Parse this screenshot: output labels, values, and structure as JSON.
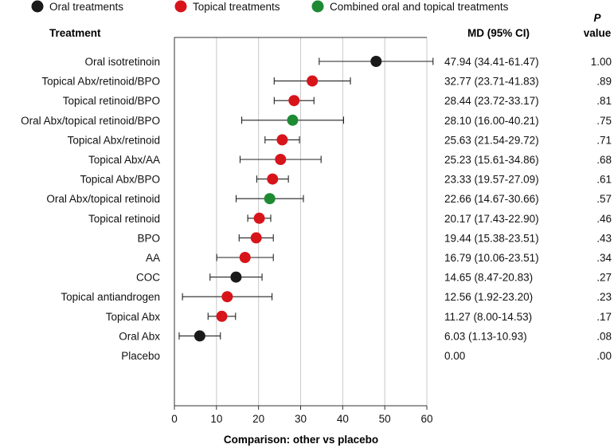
{
  "chart_data": {
    "type": "forest",
    "legend": [
      {
        "label": "Oral treatments",
        "color": "#1a1a1a"
      },
      {
        "label": "Topical treatments",
        "color": "#d7141a"
      },
      {
        "label": "Combined oral and topical treatments",
        "color": "#1e8a33"
      }
    ],
    "headers": {
      "treatment": "Treatment",
      "md": "MD (95% CI)",
      "p_top": "P",
      "p_bottom": "value"
    },
    "xlabel": "Comparison: other vs placebo",
    "xlim": [
      0,
      60
    ],
    "xticks": [
      0,
      10,
      20,
      30,
      40,
      50,
      60
    ],
    "rows": [
      {
        "treatment": "Oral isotretinoin",
        "group": 0,
        "md": 47.94,
        "lo": 34.41,
        "hi": 61.47,
        "md_text": "47.94 (34.41-61.47)",
        "p": "1.00"
      },
      {
        "treatment": "Topical Abx/retinoid/BPO",
        "group": 1,
        "md": 32.77,
        "lo": 23.71,
        "hi": 41.83,
        "md_text": "32.77 (23.71-41.83)",
        "p": ".89"
      },
      {
        "treatment": "Topical retinoid/BPO",
        "group": 1,
        "md": 28.44,
        "lo": 23.72,
        "hi": 33.17,
        "md_text": "28.44 (23.72-33.17)",
        "p": ".81"
      },
      {
        "treatment": "Oral Abx/topical retinoid/BPO",
        "group": 2,
        "md": 28.1,
        "lo": 16.0,
        "hi": 40.21,
        "md_text": "28.10 (16.00-40.21)",
        "p": ".75"
      },
      {
        "treatment": "Topical Abx/retinoid",
        "group": 1,
        "md": 25.63,
        "lo": 21.54,
        "hi": 29.72,
        "md_text": "25.63 (21.54-29.72)",
        "p": ".71"
      },
      {
        "treatment": "Topical Abx/AA",
        "group": 1,
        "md": 25.23,
        "lo": 15.61,
        "hi": 34.86,
        "md_text": "25.23 (15.61-34.86)",
        "p": ".68"
      },
      {
        "treatment": "Topical Abx/BPO",
        "group": 1,
        "md": 23.33,
        "lo": 19.57,
        "hi": 27.09,
        "md_text": "23.33 (19.57-27.09)",
        "p": ".61"
      },
      {
        "treatment": "Oral Abx/topical retinoid",
        "group": 2,
        "md": 22.66,
        "lo": 14.67,
        "hi": 30.66,
        "md_text": "22.66 (14.67-30.66)",
        "p": ".57"
      },
      {
        "treatment": "Topical retinoid",
        "group": 1,
        "md": 20.17,
        "lo": 17.43,
        "hi": 22.9,
        "md_text": "20.17 (17.43-22.90)",
        "p": ".46"
      },
      {
        "treatment": "BPO",
        "group": 1,
        "md": 19.44,
        "lo": 15.38,
        "hi": 23.51,
        "md_text": "19.44 (15.38-23.51)",
        "p": ".43"
      },
      {
        "treatment": "AA",
        "group": 1,
        "md": 16.79,
        "lo": 10.06,
        "hi": 23.51,
        "md_text": "16.79 (10.06-23.51)",
        "p": ".34"
      },
      {
        "treatment": "COC",
        "group": 0,
        "md": 14.65,
        "lo": 8.47,
        "hi": 20.83,
        "md_text": "14.65 (8.47-20.83)",
        "p": ".27"
      },
      {
        "treatment": "Topical antiandrogen",
        "group": 1,
        "md": 12.56,
        "lo": 1.92,
        "hi": 23.2,
        "md_text": "12.56 (1.92-23.20)",
        "p": ".23"
      },
      {
        "treatment": "Topical Abx",
        "group": 1,
        "md": 11.27,
        "lo": 8.0,
        "hi": 14.53,
        "md_text": "11.27 (8.00-14.53)",
        "p": ".17"
      },
      {
        "treatment": "Oral Abx",
        "group": 0,
        "md": 6.03,
        "lo": 1.13,
        "hi": 10.93,
        "md_text": "6.03 (1.13-10.93)",
        "p": ".08"
      },
      {
        "treatment": "Placebo",
        "group": null,
        "md": null,
        "lo": null,
        "hi": null,
        "md_text": "0.00",
        "p": ".00"
      }
    ]
  }
}
